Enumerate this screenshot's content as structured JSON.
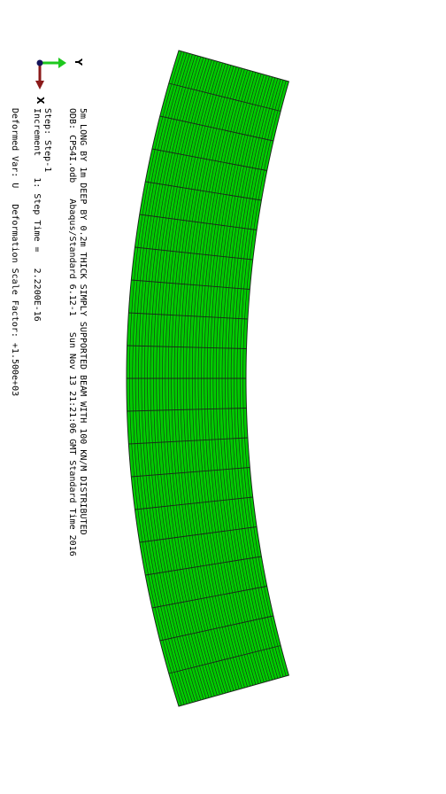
{
  "title_lines": {
    "line1": "5m LONG BY 1m DEEP BY 0.2m THICK SIMPLY SUPPORTED BEAM WITH 100 KN/M DISTRIBUTED",
    "line2": "ODB: CPS4I.odb   Abaqus/Standard 6.12-1   Sun Nov 13 21:21:06 GMT Standard Time 2016"
  },
  "step_info": {
    "step": "Step: Step-1",
    "increment": "Increment    1: Step Time =   2.2200E-16"
  },
  "deformation": {
    "label": "Deformed Var: U   Deformation Scale Factor: +1.500e+03"
  },
  "triad": {
    "y_label": "Y",
    "x_label": "X",
    "y_color": "#1ec81e",
    "x_color": "#8b1a1a",
    "z_color": "#14145a"
  },
  "mesh": {
    "fill_color": "#00cc00",
    "edge_color": "#1a2a1a",
    "elements_along_length": 20,
    "elements_through_depth": 40
  }
}
